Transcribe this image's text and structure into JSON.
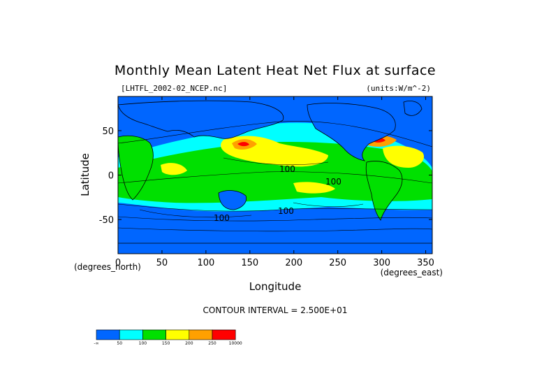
{
  "chart_data": {
    "type": "heatmap",
    "title": "Monthly Mean Latent Heat Net Flux at surface",
    "source_label": "[LHTFL_2002-02_NCEP.nc]",
    "units_label": "(units:W/m^-2)",
    "xlabel": "Longitude",
    "ylabel": "Latitude",
    "x_units": "(degrees_east)",
    "y_units": "(degrees_north)",
    "xlim": [
      0,
      357.5
    ],
    "ylim": [
      -88.5,
      88.5
    ],
    "x_ticks": [
      0,
      50,
      100,
      150,
      200,
      250,
      300,
      350
    ],
    "y_ticks": [
      50,
      0,
      -50
    ],
    "contour_interval": "CONTOUR INTERVAL = 2.500E+01",
    "contour_label": "100",
    "colorbar": {
      "labels": [
        "-∞",
        "50",
        "100",
        "150",
        "200",
        "250",
        "10000"
      ],
      "colors": [
        "#0066ff",
        "#00ffff",
        "#00e000",
        "#ffff00",
        "#ffa000",
        "#ff0000"
      ]
    }
  }
}
